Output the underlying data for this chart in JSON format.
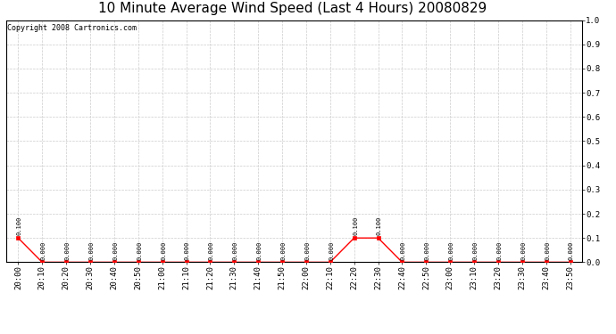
{
  "title": "10 Minute Average Wind Speed (Last 4 Hours) 20080829",
  "copyright_text": "Copyright 2008 Cartronics.com",
  "x_labels": [
    "20:00",
    "20:10",
    "20:20",
    "20:30",
    "20:40",
    "20:50",
    "21:00",
    "21:10",
    "21:20",
    "21:30",
    "21:40",
    "21:50",
    "22:00",
    "22:10",
    "22:20",
    "22:30",
    "22:40",
    "22:50",
    "23:00",
    "23:10",
    "23:20",
    "23:30",
    "23:40",
    "23:50"
  ],
  "y_values": [
    0.1,
    0.0,
    0.0,
    0.0,
    0.0,
    0.0,
    0.0,
    0.0,
    0.0,
    0.0,
    0.0,
    0.0,
    0.0,
    0.0,
    0.1,
    0.1,
    0.0,
    0.0,
    0.0,
    0.0,
    0.0,
    0.0,
    0.0,
    0.0
  ],
  "ylim": [
    0.0,
    1.0
  ],
  "line_color": "red",
  "marker_color": "red",
  "background_color": "#ffffff",
  "plot_bg_color": "#ffffff",
  "grid_color": "#cccccc",
  "title_fontsize": 11,
  "copyright_fontsize": 6,
  "label_fontsize": 5,
  "tick_fontsize": 6.5,
  "ytick_values": [
    0.0,
    0.1,
    0.2,
    0.3,
    0.4,
    0.5,
    0.6,
    0.7,
    0.8,
    0.9,
    1.0
  ]
}
